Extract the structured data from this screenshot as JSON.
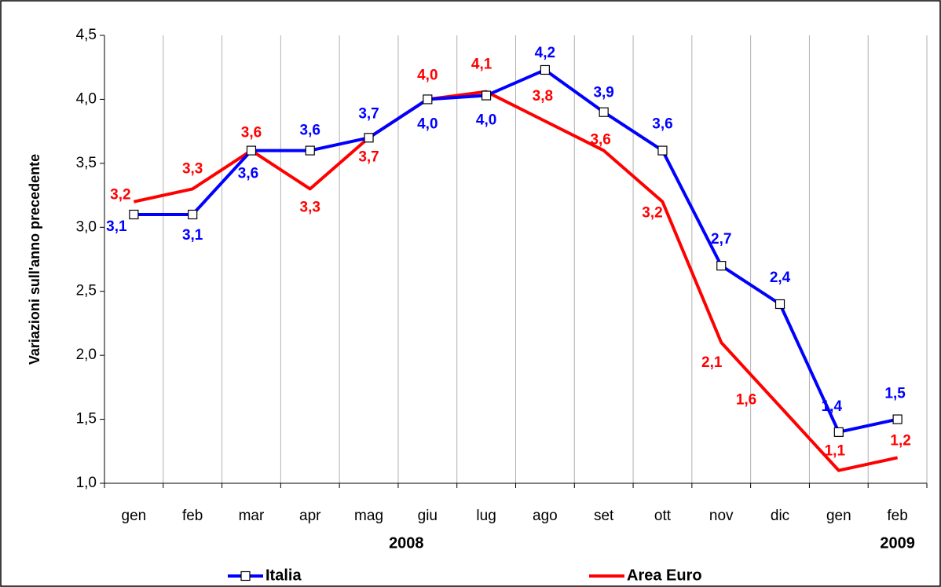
{
  "chart_data": {
    "type": "line",
    "y_label": "Variazioni sull'anno precedente",
    "categories": [
      "gen",
      "feb",
      "mar",
      "apr",
      "mag",
      "giu",
      "lug",
      "ago",
      "set",
      "ott",
      "nov",
      "dic",
      "gen",
      "feb"
    ],
    "annotations": [
      "2008",
      "2009"
    ],
    "series": [
      {
        "name": "Italia",
        "color": "#0000ff",
        "marker": "square",
        "values": [
          3.1,
          3.1,
          3.6,
          3.6,
          3.7,
          4.0,
          4.03,
          4.23,
          3.9,
          3.6,
          2.7,
          2.4,
          1.4,
          1.5
        ],
        "value_labels": [
          "3,1",
          "3,1",
          "3,6",
          "3,6",
          "3,7",
          "4,0",
          "4,0",
          "4,2",
          "3,9",
          "3,6",
          "2,7",
          "2,4",
          "1,4",
          "1,5"
        ]
      },
      {
        "name": "Area Euro",
        "color": "#ff0000",
        "values": [
          3.2,
          3.3,
          3.6,
          3.3,
          3.7,
          4.0,
          4.06,
          3.83,
          3.6,
          3.2,
          2.1,
          1.6,
          1.1,
          1.2
        ],
        "value_labels": [
          "3,2",
          "3,3",
          "3,6",
          "3,3",
          "3,7",
          "4,0",
          "4,1",
          "3,8",
          "3,6",
          "3,2",
          "2,1",
          "1,6",
          "1,1",
          "1,2"
        ]
      }
    ],
    "ylim": [
      1.0,
      4.5
    ],
    "yticks": [
      {
        "value": 1.0,
        "label": "1,0"
      },
      {
        "value": 1.5,
        "label": "1,5"
      },
      {
        "value": 2.0,
        "label": "2,0"
      },
      {
        "value": 2.5,
        "label": "2,5"
      },
      {
        "value": 3.0,
        "label": "3,0"
      },
      {
        "value": 3.5,
        "label": "3,5"
      },
      {
        "value": 4.0,
        "label": "4,0"
      },
      {
        "value": 4.5,
        "label": "4,5"
      }
    ],
    "grid": true,
    "legend": "bottom"
  }
}
